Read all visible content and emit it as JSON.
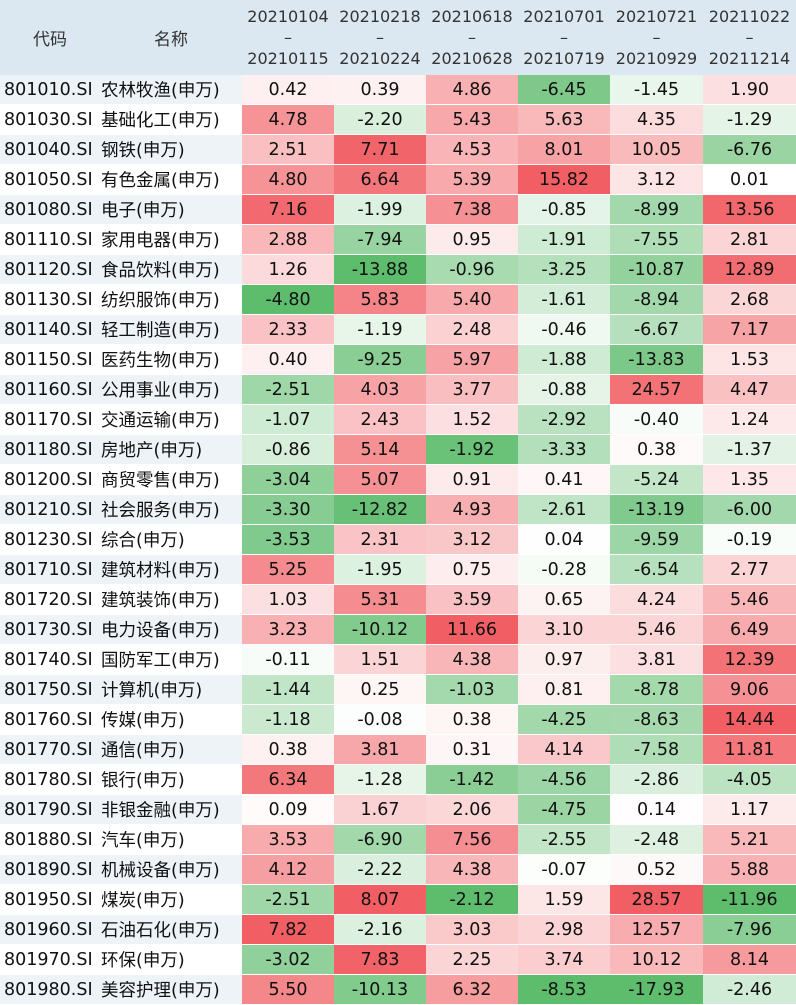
{
  "header": {
    "code_label": "代码",
    "name_label": "名称",
    "periods": [
      {
        "start": "20210104",
        "sep": "–",
        "end": "20210115"
      },
      {
        "start": "20210218",
        "sep": "–",
        "end": "20210224"
      },
      {
        "start": "20210618",
        "sep": "–",
        "end": "20210628"
      },
      {
        "start": "20210701",
        "sep": "–",
        "end": "20210719"
      },
      {
        "start": "20210721",
        "sep": "–",
        "end": "20210929"
      },
      {
        "start": "20211022",
        "sep": "–",
        "end": "20211214"
      }
    ]
  },
  "colors": {
    "positive": "#f0575c",
    "negative": "#55b865",
    "neutral": "#ffffff",
    "header_bg": "#dbe7f1"
  },
  "rows": [
    {
      "code": "801010.SI",
      "name": "农林牧渔(申万)",
      "values": [
        "0.42",
        "0.39",
        "4.86",
        "-6.45",
        "-1.45",
        "1.90"
      ]
    },
    {
      "code": "801030.SI",
      "name": "基础化工(申万)",
      "values": [
        "4.78",
        "-2.20",
        "5.43",
        "5.63",
        "4.35",
        "-1.29"
      ]
    },
    {
      "code": "801040.SI",
      "name": "钢铁(申万)",
      "values": [
        "2.51",
        "7.71",
        "4.53",
        "8.01",
        "10.05",
        "-6.76"
      ]
    },
    {
      "code": "801050.SI",
      "name": "有色金属(申万)",
      "values": [
        "4.80",
        "6.64",
        "5.39",
        "15.82",
        "3.12",
        "0.01"
      ]
    },
    {
      "code": "801080.SI",
      "name": "电子(申万)",
      "values": [
        "7.16",
        "-1.99",
        "7.38",
        "-0.85",
        "-8.99",
        "13.56"
      ]
    },
    {
      "code": "801110.SI",
      "name": "家用电器(申万)",
      "values": [
        "2.88",
        "-7.94",
        "0.95",
        "-1.91",
        "-7.55",
        "2.81"
      ]
    },
    {
      "code": "801120.SI",
      "name": "食品饮料(申万)",
      "values": [
        "1.26",
        "-13.88",
        "-0.96",
        "-3.25",
        "-10.87",
        "12.89"
      ]
    },
    {
      "code": "801130.SI",
      "name": "纺织服饰(申万)",
      "values": [
        "-4.80",
        "5.83",
        "5.40",
        "-1.61",
        "-8.94",
        "2.68"
      ]
    },
    {
      "code": "801140.SI",
      "name": "轻工制造(申万)",
      "values": [
        "2.33",
        "-1.19",
        "2.48",
        "-0.46",
        "-6.67",
        "7.17"
      ]
    },
    {
      "code": "801150.SI",
      "name": "医药生物(申万)",
      "values": [
        "0.40",
        "-9.25",
        "5.97",
        "-1.88",
        "-13.83",
        "1.53"
      ]
    },
    {
      "code": "801160.SI",
      "name": "公用事业(申万)",
      "values": [
        "-2.51",
        "4.03",
        "3.77",
        "-0.88",
        "24.57",
        "4.47"
      ]
    },
    {
      "code": "801170.SI",
      "name": "交通运输(申万)",
      "values": [
        "-1.07",
        "2.43",
        "1.52",
        "-2.92",
        "-0.40",
        "1.24"
      ]
    },
    {
      "code": "801180.SI",
      "name": "房地产(申万)",
      "values": [
        "-0.86",
        "5.14",
        "-1.92",
        "-3.33",
        "0.38",
        "-1.37"
      ]
    },
    {
      "code": "801200.SI",
      "name": "商贸零售(申万)",
      "values": [
        "-3.04",
        "5.07",
        "0.91",
        "0.41",
        "-5.24",
        "1.35"
      ]
    },
    {
      "code": "801210.SI",
      "name": "社会服务(申万)",
      "values": [
        "-3.30",
        "-12.82",
        "4.93",
        "-2.61",
        "-13.19",
        "-6.00"
      ]
    },
    {
      "code": "801230.SI",
      "name": "综合(申万)",
      "values": [
        "-3.53",
        "2.31",
        "3.12",
        "0.04",
        "-9.59",
        "-0.19"
      ]
    },
    {
      "code": "801710.SI",
      "name": "建筑材料(申万)",
      "values": [
        "5.25",
        "-1.95",
        "0.75",
        "-0.28",
        "-6.54",
        "2.77"
      ]
    },
    {
      "code": "801720.SI",
      "name": "建筑装饰(申万)",
      "values": [
        "1.03",
        "5.31",
        "3.59",
        "0.65",
        "4.24",
        "5.46"
      ]
    },
    {
      "code": "801730.SI",
      "name": "电力设备(申万)",
      "values": [
        "3.23",
        "-10.12",
        "11.66",
        "3.10",
        "5.46",
        "6.49"
      ]
    },
    {
      "code": "801740.SI",
      "name": "国防军工(申万)",
      "values": [
        "-0.11",
        "1.51",
        "4.38",
        "0.97",
        "3.81",
        "12.39"
      ]
    },
    {
      "code": "801750.SI",
      "name": "计算机(申万)",
      "values": [
        "-1.44",
        "0.25",
        "-1.03",
        "0.81",
        "-8.78",
        "9.06"
      ]
    },
    {
      "code": "801760.SI",
      "name": "传媒(申万)",
      "values": [
        "-1.18",
        "-0.08",
        "0.38",
        "-4.25",
        "-8.63",
        "14.44"
      ]
    },
    {
      "code": "801770.SI",
      "name": "通信(申万)",
      "values": [
        "0.38",
        "3.81",
        "0.31",
        "4.14",
        "-7.58",
        "11.81"
      ]
    },
    {
      "code": "801780.SI",
      "name": "银行(申万)",
      "values": [
        "6.34",
        "-1.28",
        "-1.42",
        "-4.56",
        "-2.86",
        "-4.05"
      ]
    },
    {
      "code": "801790.SI",
      "name": "非银金融(申万)",
      "values": [
        "0.09",
        "1.67",
        "2.06",
        "-4.75",
        "0.14",
        "1.17"
      ]
    },
    {
      "code": "801880.SI",
      "name": "汽车(申万)",
      "values": [
        "3.53",
        "-6.90",
        "7.56",
        "-2.55",
        "-2.48",
        "5.21"
      ]
    },
    {
      "code": "801890.SI",
      "name": "机械设备(申万)",
      "values": [
        "4.12",
        "-2.22",
        "4.38",
        "-0.07",
        "0.52",
        "5.88"
      ]
    },
    {
      "code": "801950.SI",
      "name": "煤炭(申万)",
      "values": [
        "-2.51",
        "8.07",
        "-2.12",
        "1.59",
        "28.57",
        "-11.96"
      ]
    },
    {
      "code": "801960.SI",
      "name": "石油石化(申万)",
      "values": [
        "7.82",
        "-2.16",
        "3.03",
        "2.98",
        "12.57",
        "-7.96"
      ]
    },
    {
      "code": "801970.SI",
      "name": "环保(申万)",
      "values": [
        "-3.02",
        "7.83",
        "2.25",
        "3.74",
        "10.12",
        "8.14"
      ]
    },
    {
      "code": "801980.SI",
      "name": "美容护理(申万)",
      "values": [
        "5.50",
        "-10.13",
        "6.32",
        "-8.53",
        "-17.93",
        "-2.46"
      ]
    }
  ]
}
